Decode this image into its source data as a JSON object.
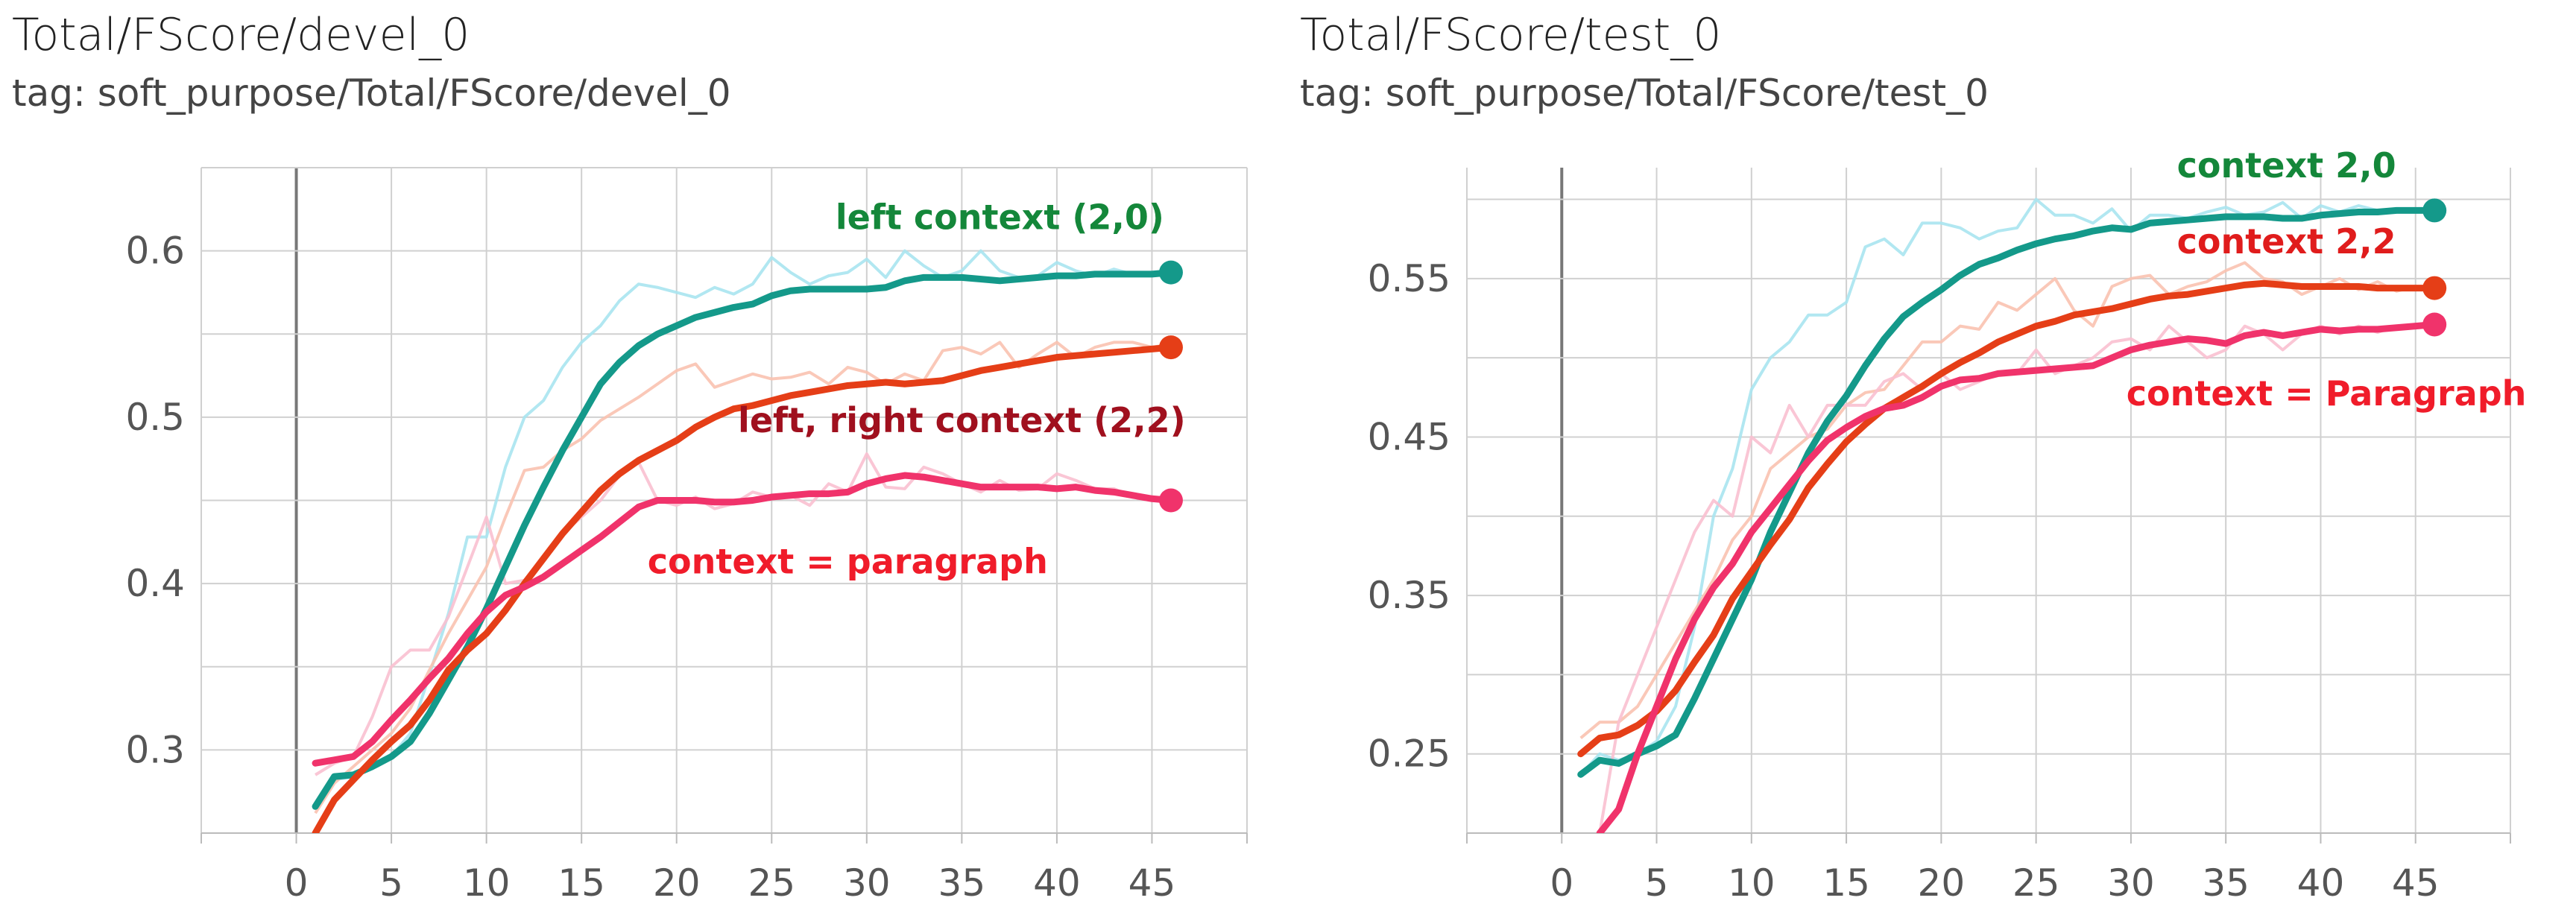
{
  "chart_data": [
    {
      "type": "line",
      "title": "Total/FScore/devel_0",
      "subtitle": "tag: soft_purpose/Total/FScore/devel_0",
      "xlim": [
        -5,
        50
      ],
      "ylim": [
        0.25,
        0.65
      ],
      "x_ticks": [
        0,
        5,
        10,
        15,
        20,
        25,
        30,
        35,
        40,
        45
      ],
      "y_ticks": [
        0.3,
        0.4,
        0.5,
        0.6
      ],
      "y_tick_labels": [
        "0.3",
        "0.4",
        "0.5",
        "0.6"
      ],
      "grid": true,
      "series": [
        {
          "name": "left context (2,0)",
          "color": "#14998a",
          "raw_color": "#a8e4f0",
          "x": [
            1,
            2,
            3,
            4,
            5,
            6,
            7,
            8,
            9,
            10,
            11,
            12,
            13,
            14,
            15,
            16,
            17,
            18,
            19,
            20,
            21,
            22,
            23,
            24,
            25,
            26,
            27,
            28,
            29,
            30,
            31,
            32,
            33,
            34,
            35,
            36,
            37,
            38,
            39,
            40,
            41,
            42,
            43,
            44,
            45,
            46
          ],
          "y": [
            0.266,
            0.284,
            0.285,
            0.29,
            0.296,
            0.305,
            0.322,
            0.342,
            0.362,
            0.385,
            0.41,
            0.435,
            0.458,
            0.48,
            0.5,
            0.52,
            0.533,
            0.543,
            0.55,
            0.555,
            0.56,
            0.563,
            0.566,
            0.568,
            0.573,
            0.576,
            0.577,
            0.577,
            0.577,
            0.577,
            0.578,
            0.582,
            0.584,
            0.584,
            0.584,
            0.583,
            0.582,
            0.583,
            0.584,
            0.585,
            0.585,
            0.586,
            0.586,
            0.586,
            0.586,
            0.587
          ],
          "raw_y": [
            0.266,
            0.282,
            0.284,
            0.29,
            0.296,
            0.31,
            0.345,
            0.382,
            0.428,
            0.428,
            0.47,
            0.5,
            0.51,
            0.53,
            0.545,
            0.555,
            0.57,
            0.58,
            0.578,
            0.575,
            0.572,
            0.578,
            0.574,
            0.58,
            0.596,
            0.587,
            0.58,
            0.585,
            0.587,
            0.595,
            0.584,
            0.6,
            0.591,
            0.584,
            0.588,
            0.6,
            0.588,
            0.584,
            0.585,
            0.593,
            0.588,
            0.585,
            0.589,
            0.586,
            0.587,
            0.588
          ]
        },
        {
          "name": "left, right context (2,2)",
          "color": "#e53e17",
          "raw_color": "#f9c2b0",
          "x": [
            1,
            2,
            3,
            4,
            5,
            6,
            7,
            8,
            9,
            10,
            11,
            12,
            13,
            14,
            15,
            16,
            17,
            18,
            19,
            20,
            21,
            22,
            23,
            24,
            25,
            26,
            27,
            28,
            29,
            30,
            31,
            32,
            33,
            34,
            35,
            36,
            37,
            38,
            39,
            40,
            41,
            42,
            43,
            44,
            45,
            46
          ],
          "y": [
            0.25,
            0.27,
            0.282,
            0.294,
            0.305,
            0.315,
            0.33,
            0.348,
            0.36,
            0.37,
            0.384,
            0.4,
            0.415,
            0.43,
            0.443,
            0.456,
            0.466,
            0.474,
            0.48,
            0.486,
            0.494,
            0.5,
            0.505,
            0.507,
            0.51,
            0.513,
            0.515,
            0.517,
            0.519,
            0.52,
            0.521,
            0.52,
            0.521,
            0.522,
            0.525,
            0.528,
            0.53,
            0.532,
            0.534,
            0.536,
            0.537,
            0.538,
            0.539,
            0.54,
            0.541,
            0.542
          ],
          "raw_y": [
            0.262,
            0.28,
            0.29,
            0.3,
            0.31,
            0.325,
            0.348,
            0.37,
            0.39,
            0.41,
            0.44,
            0.468,
            0.47,
            0.48,
            0.487,
            0.498,
            0.505,
            0.512,
            0.52,
            0.528,
            0.532,
            0.518,
            0.522,
            0.526,
            0.523,
            0.524,
            0.527,
            0.52,
            0.53,
            0.527,
            0.52,
            0.526,
            0.522,
            0.54,
            0.542,
            0.538,
            0.545,
            0.53,
            0.538,
            0.545,
            0.536,
            0.542,
            0.545,
            0.545,
            0.542,
            0.544
          ]
        },
        {
          "name": "context = paragraph",
          "color": "#f0336b",
          "raw_color": "#f9c0d0",
          "x": [
            1,
            2,
            3,
            4,
            5,
            6,
            7,
            8,
            9,
            10,
            11,
            12,
            13,
            14,
            15,
            16,
            17,
            18,
            19,
            20,
            21,
            22,
            23,
            24,
            25,
            26,
            27,
            28,
            29,
            30,
            31,
            32,
            33,
            34,
            35,
            36,
            37,
            38,
            39,
            40,
            41,
            42,
            43,
            44,
            45,
            46
          ],
          "y": [
            0.292,
            0.294,
            0.296,
            0.305,
            0.318,
            0.33,
            0.343,
            0.355,
            0.37,
            0.383,
            0.393,
            0.398,
            0.404,
            0.412,
            0.42,
            0.428,
            0.437,
            0.446,
            0.45,
            0.45,
            0.45,
            0.449,
            0.449,
            0.45,
            0.452,
            0.453,
            0.454,
            0.454,
            0.455,
            0.46,
            0.463,
            0.465,
            0.464,
            0.462,
            0.46,
            0.458,
            0.458,
            0.458,
            0.458,
            0.457,
            0.458,
            0.456,
            0.455,
            0.453,
            0.451,
            0.45
          ],
          "raw_y": [
            0.285,
            0.292,
            0.296,
            0.32,
            0.35,
            0.36,
            0.36,
            0.38,
            0.41,
            0.44,
            0.4,
            0.402,
            0.415,
            0.43,
            0.44,
            0.45,
            0.465,
            0.473,
            0.45,
            0.447,
            0.452,
            0.445,
            0.448,
            0.455,
            0.452,
            0.453,
            0.447,
            0.46,
            0.455,
            0.478,
            0.458,
            0.457,
            0.47,
            0.466,
            0.46,
            0.455,
            0.462,
            0.456,
            0.457,
            0.466,
            0.462,
            0.457,
            0.457,
            0.452,
            0.45,
            0.45
          ]
        }
      ],
      "annotations": [
        {
          "text": "left context (2,0)",
          "color": "#14873a",
          "x": 37,
          "y": 0.613
        },
        {
          "text": "left, right context (2,2)",
          "color": "#a0101e",
          "x": 35,
          "y": 0.491
        },
        {
          "text": "context = paragraph",
          "color": "#f01c2a",
          "x": 29,
          "y": 0.406
        }
      ]
    },
    {
      "type": "line",
      "title": "Total/FScore/test_0",
      "subtitle": "tag: soft_purpose/Total/FScore/test_0",
      "xlim": [
        -5,
        50
      ],
      "ylim": [
        0.2,
        0.62
      ],
      "x_ticks": [
        0,
        5,
        10,
        15,
        20,
        25,
        30,
        35,
        40,
        45
      ],
      "y_ticks": [
        0.25,
        0.35,
        0.45,
        0.55
      ],
      "y_tick_labels": [
        "0.25",
        "0.35",
        "0.45",
        "0.55"
      ],
      "grid": true,
      "series": [
        {
          "name": "context 2,0",
          "color": "#14998a",
          "raw_color": "#a8e4f0",
          "x": [
            1,
            2,
            3,
            4,
            5,
            6,
            7,
            8,
            9,
            10,
            11,
            12,
            13,
            14,
            15,
            16,
            17,
            18,
            19,
            20,
            21,
            22,
            23,
            24,
            25,
            26,
            27,
            28,
            29,
            30,
            31,
            32,
            33,
            34,
            35,
            36,
            37,
            38,
            39,
            40,
            41,
            42,
            43,
            44,
            45,
            46
          ],
          "y": [
            0.237,
            0.246,
            0.244,
            0.25,
            0.255,
            0.262,
            0.285,
            0.31,
            0.335,
            0.36,
            0.39,
            0.415,
            0.44,
            0.46,
            0.476,
            0.495,
            0.512,
            0.526,
            0.535,
            0.543,
            0.552,
            0.559,
            0.563,
            0.568,
            0.572,
            0.575,
            0.577,
            0.58,
            0.582,
            0.581,
            0.585,
            0.586,
            0.587,
            0.588,
            0.589,
            0.589,
            0.589,
            0.588,
            0.588,
            0.59,
            0.591,
            0.592,
            0.592,
            0.593,
            0.593,
            0.593
          ],
          "raw_y": [
            0.237,
            0.25,
            0.246,
            0.25,
            0.258,
            0.28,
            0.33,
            0.4,
            0.43,
            0.48,
            0.5,
            0.51,
            0.527,
            0.527,
            0.535,
            0.57,
            0.575,
            0.565,
            0.585,
            0.585,
            0.582,
            0.575,
            0.58,
            0.582,
            0.6,
            0.59,
            0.59,
            0.585,
            0.594,
            0.58,
            0.59,
            0.59,
            0.588,
            0.592,
            0.595,
            0.59,
            0.592,
            0.598,
            0.588,
            0.596,
            0.592,
            0.596,
            0.593,
            0.592,
            0.594,
            0.593
          ]
        },
        {
          "name": "context 2,2",
          "color": "#e53e17",
          "raw_color": "#f9c2b0",
          "x": [
            1,
            2,
            3,
            4,
            5,
            6,
            7,
            8,
            9,
            10,
            11,
            12,
            13,
            14,
            15,
            16,
            17,
            18,
            19,
            20,
            21,
            22,
            23,
            24,
            25,
            26,
            27,
            28,
            29,
            30,
            31,
            32,
            33,
            34,
            35,
            36,
            37,
            38,
            39,
            40,
            41,
            42,
            43,
            44,
            45,
            46
          ],
          "y": [
            0.25,
            0.26,
            0.262,
            0.268,
            0.277,
            0.29,
            0.308,
            0.325,
            0.348,
            0.365,
            0.382,
            0.398,
            0.418,
            0.433,
            0.447,
            0.458,
            0.468,
            0.475,
            0.482,
            0.49,
            0.497,
            0.503,
            0.51,
            0.515,
            0.52,
            0.523,
            0.527,
            0.529,
            0.531,
            0.534,
            0.537,
            0.539,
            0.54,
            0.542,
            0.544,
            0.546,
            0.547,
            0.546,
            0.545,
            0.545,
            0.545,
            0.545,
            0.544,
            0.544,
            0.544,
            0.544
          ],
          "raw_y": [
            0.26,
            0.27,
            0.27,
            0.28,
            0.3,
            0.32,
            0.34,
            0.36,
            0.385,
            0.4,
            0.43,
            0.44,
            0.45,
            0.455,
            0.47,
            0.478,
            0.48,
            0.495,
            0.51,
            0.51,
            0.52,
            0.518,
            0.535,
            0.53,
            0.54,
            0.55,
            0.53,
            0.52,
            0.545,
            0.55,
            0.552,
            0.54,
            0.545,
            0.548,
            0.555,
            0.56,
            0.55,
            0.548,
            0.54,
            0.545,
            0.55,
            0.543,
            0.548,
            0.542,
            0.545,
            0.544
          ]
        },
        {
          "name": "context = Paragraph",
          "color": "#f0336b",
          "raw_color": "#f9c0d0",
          "x": [
            2,
            3,
            4,
            5,
            6,
            7,
            8,
            9,
            10,
            11,
            12,
            13,
            14,
            15,
            16,
            17,
            18,
            19,
            20,
            21,
            22,
            23,
            24,
            25,
            26,
            27,
            28,
            29,
            30,
            31,
            32,
            33,
            34,
            35,
            36,
            37,
            38,
            39,
            40,
            41,
            42,
            43,
            44,
            45,
            46
          ],
          "y": [
            0.2,
            0.215,
            0.25,
            0.28,
            0.31,
            0.335,
            0.355,
            0.37,
            0.39,
            0.405,
            0.42,
            0.435,
            0.448,
            0.456,
            0.463,
            0.468,
            0.47,
            0.475,
            0.482,
            0.486,
            0.487,
            0.49,
            0.491,
            0.492,
            0.493,
            0.494,
            0.495,
            0.5,
            0.505,
            0.508,
            0.51,
            0.512,
            0.511,
            0.509,
            0.514,
            0.516,
            0.514,
            0.516,
            0.518,
            0.517,
            0.518,
            0.518,
            0.519,
            0.52,
            0.521
          ],
          "raw_y": [
            0.2,
            0.27,
            0.3,
            0.33,
            0.36,
            0.39,
            0.41,
            0.4,
            0.45,
            0.44,
            0.47,
            0.45,
            0.47,
            0.47,
            0.47,
            0.485,
            0.49,
            0.48,
            0.49,
            0.48,
            0.485,
            0.49,
            0.49,
            0.505,
            0.49,
            0.495,
            0.5,
            0.51,
            0.512,
            0.505,
            0.52,
            0.51,
            0.5,
            0.505,
            0.52,
            0.515,
            0.505,
            0.515,
            0.52,
            0.515,
            0.52,
            0.516,
            0.52,
            0.52,
            0.521
          ]
        }
      ],
      "annotations": [
        {
          "text": "context 2,0",
          "color": "#14873a",
          "x": 38.2,
          "y": 0.614
        },
        {
          "text": "context 2,2",
          "color": "#e01c1c",
          "x": 38.2,
          "y": 0.566
        },
        {
          "text": "context = Paragraph",
          "color": "#f01c2a",
          "x": 40.3,
          "y": 0.47
        }
      ]
    }
  ]
}
